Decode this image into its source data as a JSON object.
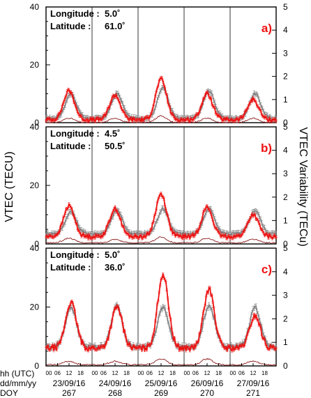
{
  "figure": {
    "ylabel_left": "VTEC (TECU)",
    "ylabel_right": "VTEC Variability (TECu)",
    "row_labels": [
      "hh (UTC)",
      "dd/mm/yy",
      "DOY"
    ],
    "hour_ticks": [
      "00",
      "06",
      "12",
      "18"
    ],
    "dates": [
      "23/09/16",
      "24/09/16",
      "25/09/16",
      "26/09/16",
      "27/09/16"
    ],
    "doys": [
      "267",
      "268",
      "269",
      "270",
      "271"
    ],
    "colors": {
      "gray": "#7f7f7f",
      "red": "#ee1111",
      "variability": "#8b1a1a"
    }
  },
  "chart_data": [
    {
      "type": "line",
      "panel_label": "a)",
      "longitude_label": "Longitude :",
      "longitude_value": "5.0˚",
      "latitude_label": "Latitude   :",
      "latitude_value": "61.0˚",
      "ylim": [
        0,
        40
      ],
      "yticks": [
        0,
        20,
        40
      ],
      "ylim_right": [
        0,
        5
      ],
      "yticks_right": [
        0,
        1,
        2,
        3,
        4,
        5
      ],
      "series": [
        {
          "style": "gray",
          "peaks": [
            10,
            10,
            12,
            11,
            10
          ],
          "trough": 1.5,
          "peak_hour": 13,
          "noise": 0.9
        },
        {
          "style": "red",
          "peaks": [
            11,
            9.5,
            15,
            10,
            8
          ],
          "trough": 1.0,
          "peak_hour": 12,
          "noise": 1.3
        },
        {
          "style": "variability",
          "peaks": [
            0.2,
            0.2,
            0.3,
            0.2,
            0.2
          ],
          "trough": 0.0,
          "peak_hour": 12,
          "noise": 0.05
        }
      ]
    },
    {
      "type": "line",
      "panel_label": "b)",
      "longitude_label": "Longitude :",
      "longitude_value": "4.5˚",
      "latitude_label": "Latitude   :",
      "latitude_value": "50.5˚",
      "ylim": [
        0,
        40
      ],
      "yticks": [
        0,
        20,
        40
      ],
      "ylim_right": [
        0,
        5
      ],
      "yticks_right": [
        0,
        1,
        2,
        3,
        4,
        5
      ],
      "series": [
        {
          "style": "gray",
          "peaks": [
            11,
            11.5,
            12,
            12,
            11.5
          ],
          "trough": 3.5,
          "peak_hour": 13,
          "noise": 1.0
        },
        {
          "style": "red",
          "peaks": [
            13,
            12,
            17,
            12.5,
            10
          ],
          "trough": 2.5,
          "peak_hour": 12,
          "noise": 1.3
        },
        {
          "style": "variability",
          "peaks": [
            0.25,
            0.2,
            0.3,
            0.25,
            0.2
          ],
          "trough": 0.05,
          "peak_hour": 12,
          "noise": 0.05
        }
      ]
    },
    {
      "type": "line",
      "panel_label": "c)",
      "longitude_label": "Longitude :",
      "longitude_value": "5.0˚",
      "latitude_label": "Latitude   :",
      "latitude_value": "36.0˚",
      "ylim": [
        0,
        40
      ],
      "yticks": [
        0,
        20,
        40
      ],
      "ylim_right": [
        0,
        5
      ],
      "yticks_right": [
        0,
        1,
        2,
        3,
        4,
        5
      ],
      "series": [
        {
          "style": "gray",
          "peaks": [
            20,
            20.5,
            20,
            20.5,
            20
          ],
          "trough": 6.5,
          "peak_hour": 13,
          "noise": 1.4
        },
        {
          "style": "red",
          "peaks": [
            21.5,
            20,
            31,
            26,
            17
          ],
          "trough": 6.0,
          "peak_hour": 13,
          "noise": 1.8
        },
        {
          "style": "variability",
          "peaks": [
            0.2,
            0.2,
            0.3,
            0.3,
            0.2
          ],
          "trough": 0.05,
          "peak_hour": 12,
          "noise": 0.06
        }
      ]
    }
  ]
}
